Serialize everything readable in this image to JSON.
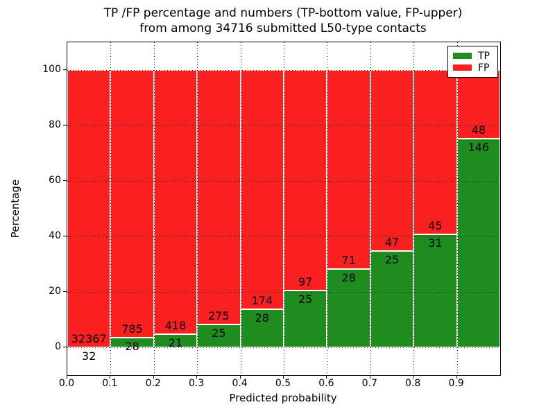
{
  "title": {
    "line1": "TP /FP percentage and numbers (TP-bottom value, FP-upper)",
    "line2": "from among 34716 submitted L50-type contacts"
  },
  "chart_data": {
    "type": "bar",
    "stacked": true,
    "normalized": "percent",
    "title": "TP /FP percentage and numbers (TP-bottom value, FP-upper)\nfrom among 34716 submitted L50-type contacts",
    "xlabel": "Predicted probability",
    "ylabel": "Percentage",
    "x_tick_labels": [
      "0.0",
      "0.1",
      "0.2",
      "0.3",
      "0.4",
      "0.5",
      "0.6",
      "0.7",
      "0.8",
      "0.9"
    ],
    "y_ticks": [
      0,
      20,
      40,
      60,
      80,
      100
    ],
    "ylim": [
      -10,
      110
    ],
    "xlim": [
      0.0,
      1.0
    ],
    "bin_width": 0.1,
    "grid": "dotted",
    "legend_position": "upper right",
    "legend": [
      {
        "label": "TP",
        "color": "#1f8c1f"
      },
      {
        "label": "FP",
        "color": "#fa2020"
      }
    ],
    "categories": [
      "0.0-0.1",
      "0.1-0.2",
      "0.2-0.3",
      "0.3-0.4",
      "0.4-0.5",
      "0.5-0.6",
      "0.6-0.7",
      "0.7-0.8",
      "0.8-0.9",
      "0.9-1.0"
    ],
    "series": [
      {
        "name": "TP",
        "color": "#1f8c1f",
        "values": [
          32,
          28,
          21,
          25,
          28,
          25,
          28,
          25,
          31,
          146
        ]
      },
      {
        "name": "FP",
        "color": "#fa2020",
        "values": [
          32367,
          785,
          418,
          275,
          174,
          97,
          71,
          47,
          45,
          48
        ]
      }
    ],
    "bar_labels_note": "TP count below segment boundary, FP count above segment boundary"
  },
  "colors": {
    "background": "#ffffff",
    "text": "#000000",
    "frame": "#000000",
    "tp": "#1f8c1f",
    "fp": "#fa2020"
  }
}
